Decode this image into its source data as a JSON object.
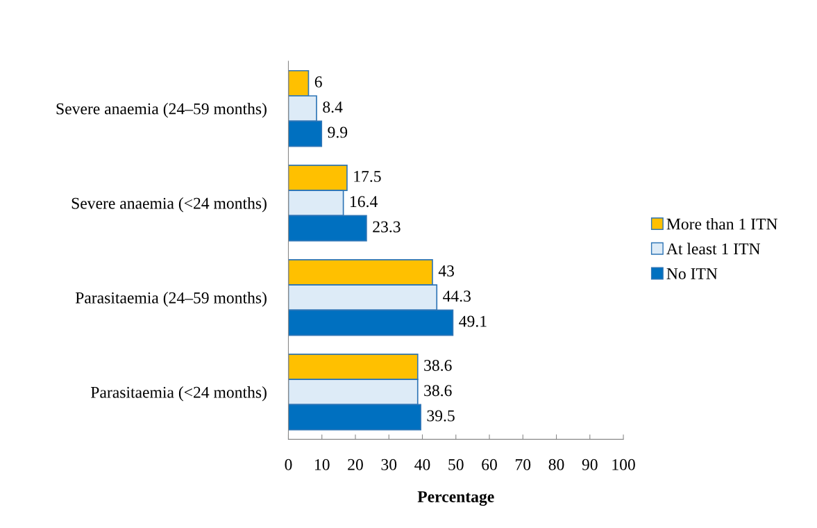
{
  "chart_data": {
    "type": "bar",
    "orientation": "horizontal",
    "xlabel": "Percentage",
    "categories": [
      "Severe anaemia (24–59 months)",
      "Severe anaemia (<24 months)",
      "Parasitaemia (24–59 months)",
      "Parasitaemia (<24 months)"
    ],
    "series": [
      {
        "name": "More than 1 ITN",
        "color": "#ffc000",
        "values": [
          6,
          17.5,
          43,
          38.6
        ]
      },
      {
        "name": "At least 1 ITN",
        "color": "#ddebf7",
        "values": [
          8.4,
          16.4,
          44.3,
          38.6
        ]
      },
      {
        "name": "No ITN",
        "color": "#0070c0",
        "values": [
          9.9,
          23.3,
          49.1,
          39.5
        ]
      }
    ],
    "xlim": [
      0,
      100
    ],
    "xticks": [
      0,
      10,
      20,
      30,
      40,
      50,
      60,
      70,
      80,
      90,
      100
    ],
    "data_labels": true,
    "grid": false,
    "legend": "right"
  }
}
